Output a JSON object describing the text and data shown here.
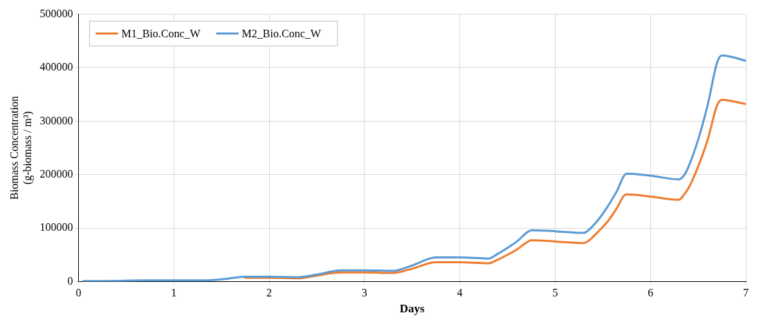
{
  "chart_data": {
    "type": "line",
    "xlabel": "Days",
    "ylabel": "Biomass Concentration\n(g-biomass / m³)",
    "x": [
      0.05,
      0.3,
      0.7,
      1.0,
      1.3,
      1.5,
      1.75,
      2.0,
      2.3,
      2.5,
      2.75,
      3.0,
      3.3,
      3.5,
      3.75,
      4.0,
      4.3,
      4.4,
      4.5,
      4.6,
      4.7,
      4.75,
      5.0,
      5.3,
      5.35,
      5.45,
      5.55,
      5.65,
      5.72,
      5.75,
      6.0,
      6.3,
      6.35,
      6.4,
      6.5,
      6.6,
      6.7,
      6.75,
      7.0
    ],
    "series": [
      {
        "name": "M1_Bio.Conc_W",
        "color": "#ed7d31",
        "values": [
          null,
          null,
          null,
          null,
          null,
          null,
          7000,
          7000,
          6000,
          11000,
          17000,
          17000,
          16000,
          24000,
          36000,
          36000,
          34000,
          41000,
          50000,
          60000,
          73000,
          77000,
          75000,
          72000,
          76000,
          93000,
          112000,
          138000,
          160000,
          163000,
          159000,
          153000,
          162000,
          175000,
          215000,
          265000,
          330000,
          340000,
          332000
        ]
      },
      {
        "name": "M2_Bio.Conc_W",
        "color": "#5b9bd5",
        "values": [
          1000,
          1000,
          2000,
          2000,
          2000,
          4000,
          9000,
          9000,
          8000,
          13000,
          21000,
          21000,
          20000,
          30000,
          45000,
          45000,
          43000,
          52000,
          63000,
          75000,
          91000,
          96000,
          94000,
          91000,
          96000,
          115000,
          140000,
          170000,
          197000,
          202000,
          198000,
          191000,
          198000,
          215000,
          265000,
          330000,
          410000,
          423000,
          413000
        ]
      }
    ],
    "xlim": [
      0,
      7
    ],
    "xticks": [
      0,
      1,
      2,
      3,
      4,
      5,
      6,
      7
    ],
    "ylim": [
      0,
      500000
    ],
    "yticks": [
      0,
      100000,
      200000,
      300000,
      400000,
      500000
    ],
    "grid": true,
    "legend": "top left",
    "marker": "none",
    "line_style": "solid"
  }
}
